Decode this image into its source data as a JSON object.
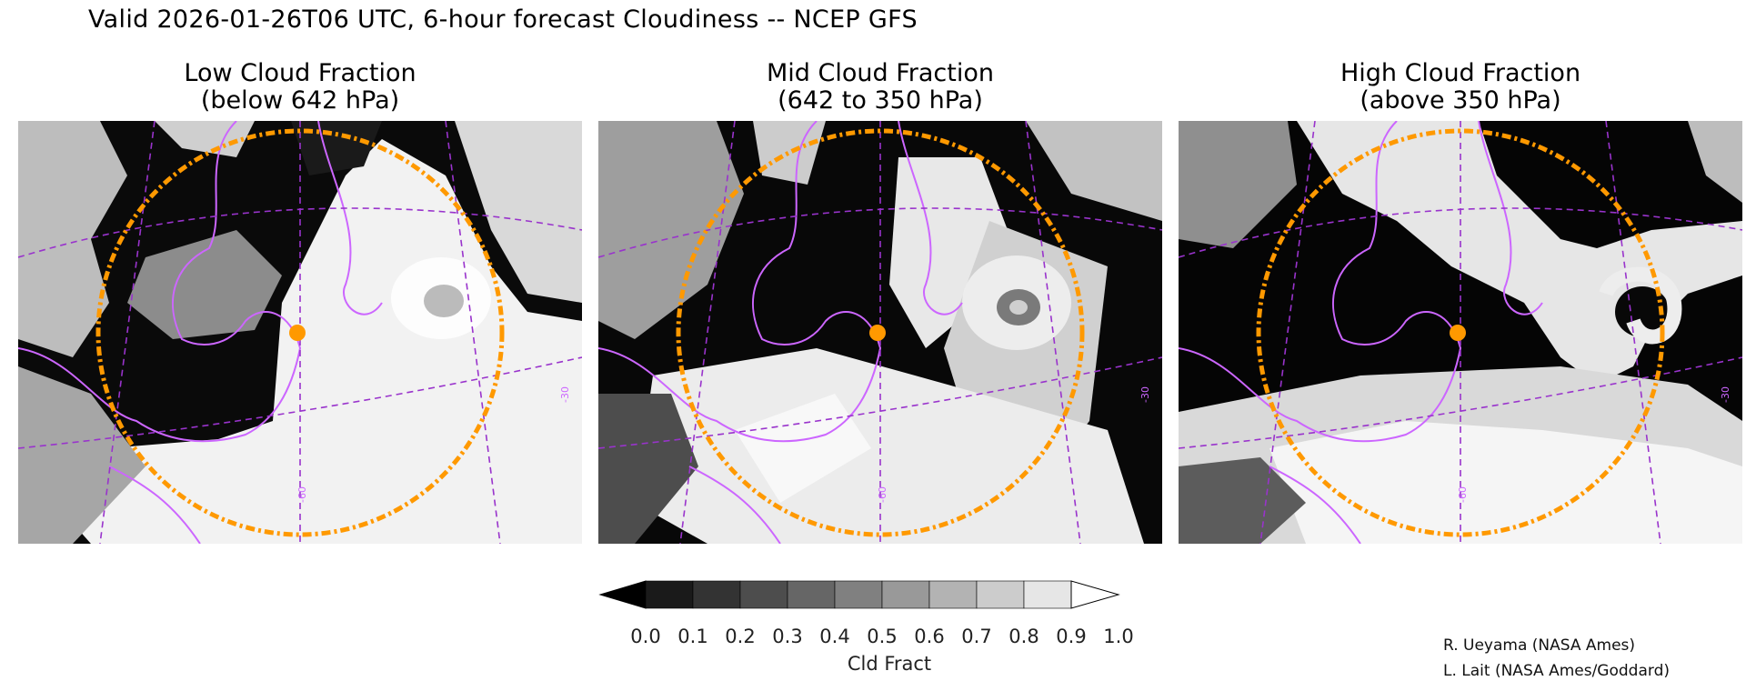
{
  "title": "Valid 2026-01-26T06 UTC, 6-hour forecast Cloudiness -- NCEP GFS",
  "panels": [
    {
      "title_line1": "Low Cloud Fraction",
      "title_line2": "(below 642 hPa)",
      "grid_label_a": "-60",
      "grid_label_b": "-30"
    },
    {
      "title_line1": "Mid Cloud Fraction",
      "title_line2": "(642 to 350 hPa)",
      "grid_label_a": "-60",
      "grid_label_b": "-30"
    },
    {
      "title_line1": "High Cloud Fraction",
      "title_line2": "(above 350 hPa)",
      "grid_label_a": "-60",
      "grid_label_b": "-30"
    }
  ],
  "colorbar": {
    "unit_label": "Cld Fract",
    "tick_labels": [
      "0.0",
      "0.1",
      "0.2",
      "0.3",
      "0.4",
      "0.5",
      "0.6",
      "0.7",
      "0.8",
      "0.9",
      "1.0"
    ],
    "colors": [
      "#000000",
      "#1a1a1a",
      "#333333",
      "#4d4d4d",
      "#666666",
      "#808080",
      "#999999",
      "#b3b3b3",
      "#cccccc",
      "#e6e6e6",
      "#ffffff"
    ]
  },
  "credits": [
    "R. Ueyama (NASA Ames)",
    "L. Lait (NASA Ames/Goddard)"
  ],
  "colors": {
    "coastline": "#cc66ff",
    "gridline": "#9933cc",
    "range_ring": "#ff9900",
    "site_marker": "#ff9900"
  }
}
